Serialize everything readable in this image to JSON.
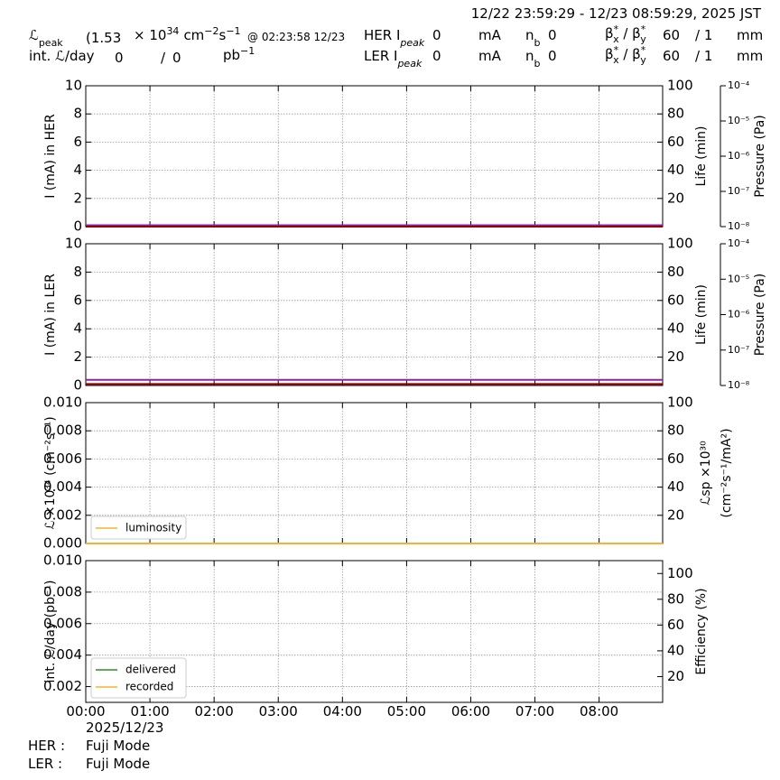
{
  "header": {
    "range": "12/22 23:59:29 - 12/23 08:59:29, 2025 JST",
    "lum": {
      "symbol": "ℒ",
      "sub": "peak",
      "value": "(1.53",
      "times": "× 10",
      "exp": "34",
      "cm": "cm",
      "cm_exp": "−2",
      "s": "s",
      "s_exp": "−1",
      "at": "@ 02:23:58 12/23"
    },
    "intlum": {
      "label": "int. ℒ/day",
      "value": "0",
      "slash": "/",
      "total": "0",
      "unit": "pb",
      "unit_exp": "−1"
    },
    "rings": [
      {
        "label": "HER I",
        "sub": "peak",
        "value": "0",
        "unit": "mA",
        "nb": "n",
        "nb_sub": "b",
        "nb_value": "0",
        "beta": "β",
        "bx_sup": "*",
        "bx_sub": "x",
        "sep": " / β",
        "by_sup": "*",
        "by_sub": "y",
        "bx_value": "60",
        "by_value": "/ 1",
        "beta_unit": "mm"
      },
      {
        "label": "LER I",
        "sub": "peak",
        "value": "0",
        "unit": "mA",
        "nb": "n",
        "nb_sub": "b",
        "nb_value": "0",
        "beta": "β",
        "bx_sup": "*",
        "bx_sub": "x",
        "sep": " / β",
        "by_sup": "*",
        "by_sub": "y",
        "bx_value": "60",
        "by_value": "/ 1",
        "beta_unit": "mm"
      }
    ]
  },
  "footer": {
    "date": "2025/12/23",
    "modes": [
      {
        "ring": "HER :",
        "mode": "Fuji Mode"
      },
      {
        "ring": "LER :",
        "mode": "Fuji Mode"
      }
    ]
  },
  "chart_data": [
    {
      "type": "line",
      "ylabel": "I (mA) in HER",
      "y2label": [
        "Life (min)"
      ],
      "y3label": "Pressure (Pa)",
      "grid": true,
      "ylim": [
        0,
        10
      ],
      "yticks": [
        0,
        2,
        4,
        6,
        8,
        10
      ],
      "y2lim": [
        0,
        100
      ],
      "y2ticks": [
        20,
        40,
        60,
        80,
        100
      ],
      "y3lim": [
        1e-08,
        0.0001
      ],
      "y3log": true,
      "y3ticks": [
        {
          "value": 1e-08,
          "label": "10⁻⁸"
        },
        {
          "value": 1e-07,
          "label": "10⁻⁷"
        },
        {
          "value": 1e-06,
          "label": "10⁻⁶"
        },
        {
          "value": 1e-05,
          "label": "10⁻⁵"
        },
        {
          "value": 0.0001,
          "label": "10⁻⁴"
        }
      ],
      "x": [
        0,
        8.99
      ],
      "series": [
        {
          "color": "#9b1fa0",
          "values": [
            0.1,
            0.1
          ]
        },
        {
          "color": "#8b0000",
          "values": [
            0,
            0
          ]
        }
      ]
    },
    {
      "type": "line",
      "ylabel": "I (mA) in LER",
      "y2label": [
        "Life (min)"
      ],
      "y3label": "Pressure (Pa)",
      "grid": true,
      "ylim": [
        0,
        10
      ],
      "yticks": [
        0,
        2,
        4,
        6,
        8,
        10
      ],
      "y2lim": [
        0,
        100
      ],
      "y2ticks": [
        20,
        40,
        60,
        80,
        100
      ],
      "y3lim": [
        1e-08,
        0.0001
      ],
      "y3log": true,
      "y3ticks": [
        {
          "value": 1e-08,
          "label": "10⁻⁸"
        },
        {
          "value": 1e-07,
          "label": "10⁻⁷"
        },
        {
          "value": 1e-06,
          "label": "10⁻⁶"
        },
        {
          "value": 1e-05,
          "label": "10⁻⁵"
        },
        {
          "value": 0.0001,
          "label": "10⁻⁴"
        }
      ],
      "x": [
        0,
        8.99
      ],
      "series": [
        {
          "color": "#9b1fa0",
          "values": [
            0.4,
            0.4
          ]
        },
        {
          "color": "#8b0000",
          "values": [
            0.1,
            0.1
          ]
        }
      ]
    },
    {
      "type": "line",
      "ylabel": "ℒ ×10³⁴ (cm⁻²s⁻¹)",
      "y2label": [
        "ℒsp ×10³⁰",
        "(cm⁻²s⁻¹/mA²)"
      ],
      "grid": true,
      "ylim": [
        0,
        0.01
      ],
      "yticks": [
        {
          "value": 0,
          "label": "0.000"
        },
        {
          "value": 0.002,
          "label": "0.002"
        },
        {
          "value": 0.004,
          "label": "0.004"
        },
        {
          "value": 0.006,
          "label": "0.006"
        },
        {
          "value": 0.008,
          "label": "0.008"
        },
        {
          "value": 0.01,
          "label": "0.010"
        }
      ],
      "y2lim": [
        0,
        100
      ],
      "y2ticks": [
        20,
        40,
        60,
        80,
        100
      ],
      "legend": "lower left",
      "x": [
        0,
        8.99
      ],
      "series": [
        {
          "name": "luminosity",
          "color": "#f5b335",
          "values": [
            0,
            0
          ]
        }
      ]
    },
    {
      "type": "line",
      "ylabel": "int. ℒ/day (pb⁻¹)",
      "y2label": [
        "Efficiency (%)"
      ],
      "grid": true,
      "ylim": [
        0.001,
        0.01
      ],
      "yticks": [
        {
          "value": 0.002,
          "label": "0.002"
        },
        {
          "value": 0.004,
          "label": "0.004"
        },
        {
          "value": 0.006,
          "label": "0.006"
        },
        {
          "value": 0.008,
          "label": "0.008"
        },
        {
          "value": 0.01,
          "label": "0.010"
        }
      ],
      "y2lim": [
        0,
        110
      ],
      "y2ticks": [
        20,
        40,
        60,
        80,
        100
      ],
      "legend": "lower left",
      "xlim": [
        0,
        8.99
      ],
      "xticks": [
        {
          "value": 0,
          "label": "00:00"
        },
        {
          "value": 1,
          "label": "01:00"
        },
        {
          "value": 2,
          "label": "02:00"
        },
        {
          "value": 3,
          "label": "03:00"
        },
        {
          "value": 4,
          "label": "04:00"
        },
        {
          "value": 5,
          "label": "05:00"
        },
        {
          "value": 6,
          "label": "06:00"
        },
        {
          "value": 7,
          "label": "07:00"
        },
        {
          "value": 8,
          "label": "08:00"
        }
      ],
      "x": [
        0,
        8.99
      ],
      "series": [
        {
          "name": "delivered",
          "color": "#2e8b2e",
          "values": [
            null,
            null
          ]
        },
        {
          "name": "recorded",
          "color": "#f5b335",
          "values": [
            null,
            null
          ]
        }
      ]
    }
  ]
}
